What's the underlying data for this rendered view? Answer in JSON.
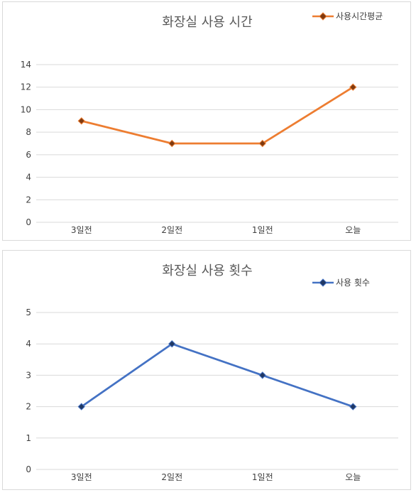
{
  "chart_data": [
    {
      "type": "line",
      "title": "화장실 사용 시간",
      "categories": [
        "3일전",
        "2일전",
        "1일전",
        "오늘"
      ],
      "series": [
        {
          "name": "사용시간평균",
          "values": [
            9,
            7,
            7,
            12
          ],
          "color": "#ED7D31",
          "marker_color": "#7F3A10"
        }
      ],
      "ylim": [
        0,
        14
      ],
      "yticks": [
        0,
        2,
        4,
        6,
        8,
        10,
        12,
        14
      ],
      "grid": true,
      "legend": "top-right",
      "marker": "diamond"
    },
    {
      "type": "line",
      "title": "화장실 사용 횟수",
      "categories": [
        "3일전",
        "2일전",
        "1일전",
        "오늘"
      ],
      "series": [
        {
          "name": "사용 횟수",
          "values": [
            2,
            4,
            3,
            2
          ],
          "color": "#4472C4",
          "marker_color": "#203864"
        }
      ],
      "ylim": [
        0,
        5
      ],
      "yticks": [
        0,
        1,
        2,
        3,
        4,
        5
      ],
      "grid": true,
      "legend": "top-right",
      "marker": "diamond"
    }
  ]
}
